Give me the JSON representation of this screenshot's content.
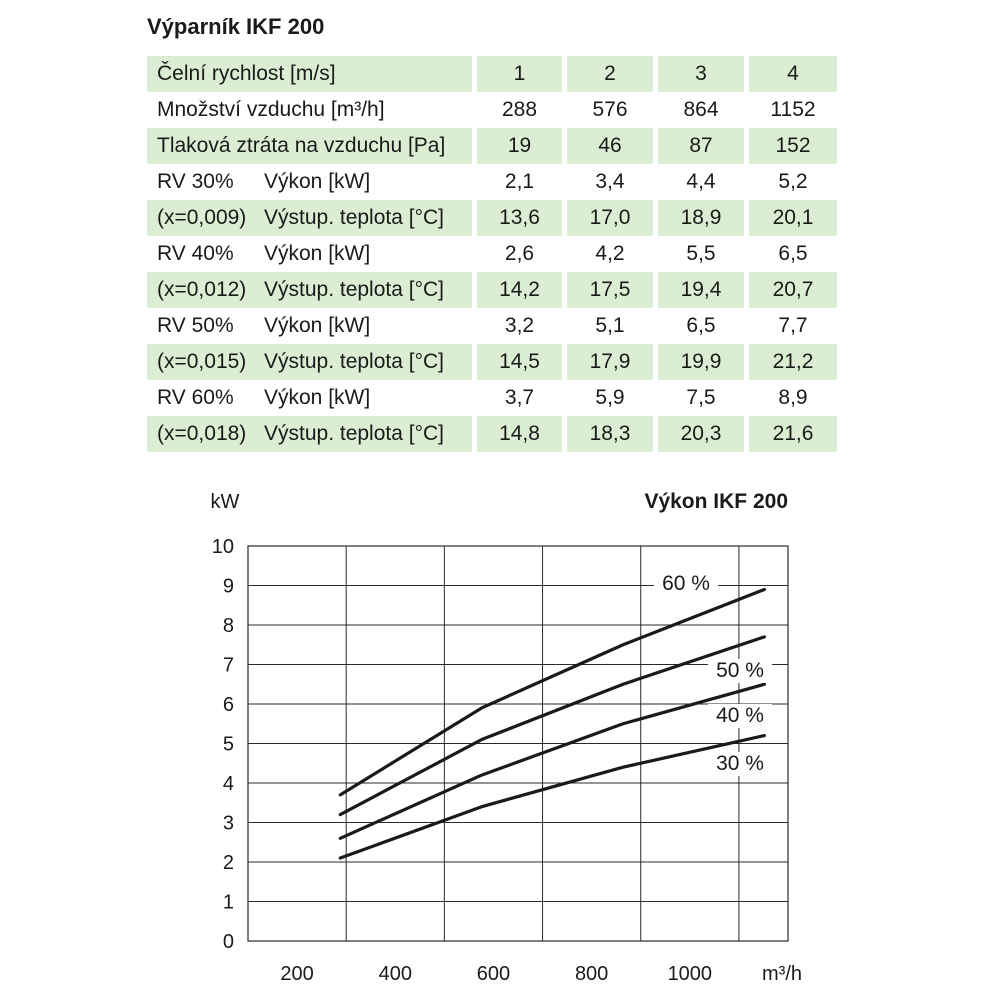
{
  "table": {
    "title": "Výparník IKF 200",
    "rows": [
      {
        "label": "Čelní rychlost [m/s]",
        "values": [
          "1",
          "2",
          "3",
          "4"
        ],
        "green": true
      },
      {
        "label": "Množství vzduchu [m³/h]",
        "values": [
          "288",
          "576",
          "864",
          "1152"
        ],
        "green": false
      },
      {
        "label": "Tlaková ztráta na vzduchu [Pa]",
        "values": [
          "19",
          "46",
          "87",
          "152"
        ],
        "green": true
      },
      {
        "label_a": "RV 30%",
        "label_b": "Výkon [kW]",
        "values": [
          "2,1",
          "3,4",
          "4,4",
          "5,2"
        ],
        "green": false
      },
      {
        "label_a": "(x=0,009)",
        "label_b": "Výstup. teplota [°C]",
        "values": [
          "13,6",
          "17,0",
          "18,9",
          "20,1"
        ],
        "green": true
      },
      {
        "label_a": "RV 40%",
        "label_b": "Výkon [kW]",
        "values": [
          "2,6",
          "4,2",
          "5,5",
          "6,5"
        ],
        "green": false
      },
      {
        "label_a": "(x=0,012)",
        "label_b": "Výstup. teplota [°C]",
        "values": [
          "14,2",
          "17,5",
          "19,4",
          "20,7"
        ],
        "green": true
      },
      {
        "label_a": "RV 50%",
        "label_b": "Výkon [kW]",
        "values": [
          "3,2",
          "5,1",
          "6,5",
          "7,7"
        ],
        "green": false
      },
      {
        "label_a": "(x=0,015)",
        "label_b": "Výstup. teplota [°C]",
        "values": [
          "14,5",
          "17,9",
          "19,9",
          "21,2"
        ],
        "green": true
      },
      {
        "label_a": "RV 60%",
        "label_b": "Výkon [kW]",
        "values": [
          "3,7",
          "5,9",
          "7,5",
          "8,9"
        ],
        "green": false
      },
      {
        "label_a": "(x=0,018)",
        "label_b": "Výstup. teplota [°C]",
        "values": [
          "14,8",
          "18,3",
          "20,3",
          "21,6"
        ],
        "green": true
      }
    ]
  },
  "chart_data": {
    "type": "line",
    "title": "Výkon IKF 200",
    "ylabel": "kW",
    "xlabel": "m³/h",
    "xlim": [
      100,
      1200
    ],
    "ylim": [
      0,
      10
    ],
    "x_ticks": [
      200,
      400,
      600,
      800,
      1000
    ],
    "y_ticks": [
      0,
      1,
      2,
      3,
      4,
      5,
      6,
      7,
      8,
      9,
      10
    ],
    "grid": true,
    "series": [
      {
        "name": "60 %",
        "x": [
          288,
          576,
          864,
          1152
        ],
        "y": [
          3.7,
          5.9,
          7.5,
          8.9
        ]
      },
      {
        "name": "50 %",
        "x": [
          288,
          576,
          864,
          1152
        ],
        "y": [
          3.2,
          5.1,
          6.5,
          7.7
        ]
      },
      {
        "name": "40 %",
        "x": [
          288,
          576,
          864,
          1152
        ],
        "y": [
          2.6,
          4.2,
          5.5,
          6.5
        ]
      },
      {
        "name": "30 %",
        "x": [
          288,
          576,
          864,
          1152
        ],
        "y": [
          2.1,
          3.4,
          4.4,
          5.2
        ]
      }
    ]
  }
}
